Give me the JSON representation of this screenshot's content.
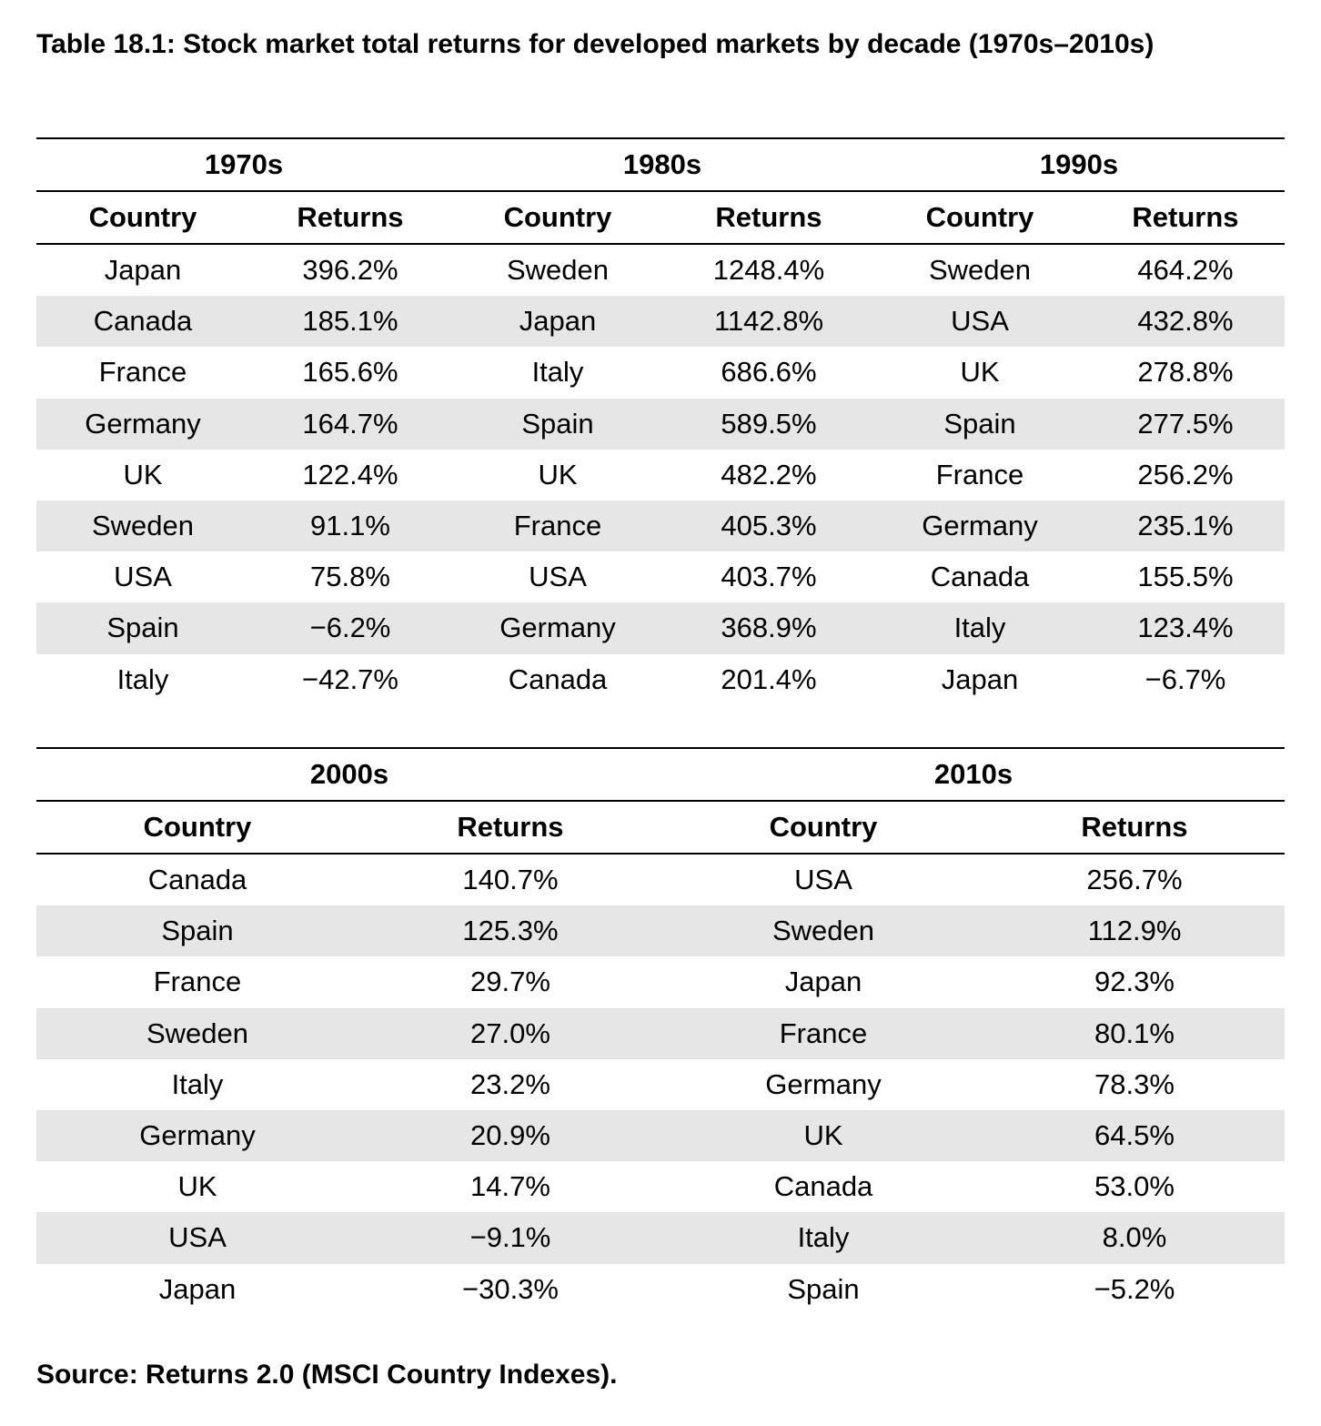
{
  "title": "Table 18.1: Stock market total returns for developed markets by decade (1970s–2010s)",
  "column_headers": {
    "country": "Country",
    "returns": "Returns"
  },
  "top_table": {
    "decades": [
      "1970s",
      "1980s",
      "1990s"
    ],
    "rows": [
      [
        "Japan",
        "396.2%",
        "Sweden",
        "1248.4%",
        "Sweden",
        "464.2%"
      ],
      [
        "Canada",
        "185.1%",
        "Japan",
        "1142.8%",
        "USA",
        "432.8%"
      ],
      [
        "France",
        "165.6%",
        "Italy",
        "686.6%",
        "UK",
        "278.8%"
      ],
      [
        "Germany",
        "164.7%",
        "Spain",
        "589.5%",
        "Spain",
        "277.5%"
      ],
      [
        "UK",
        "122.4%",
        "UK",
        "482.2%",
        "France",
        "256.2%"
      ],
      [
        "Sweden",
        "91.1%",
        "France",
        "405.3%",
        "Germany",
        "235.1%"
      ],
      [
        "USA",
        "75.8%",
        "USA",
        "403.7%",
        "Canada",
        "155.5%"
      ],
      [
        "Spain",
        "−6.2%",
        "Germany",
        "368.9%",
        "Italy",
        "123.4%"
      ],
      [
        "Italy",
        "−42.7%",
        "Canada",
        "201.4%",
        "Japan",
        "−6.7%"
      ]
    ]
  },
  "bottom_table": {
    "decades": [
      "2000s",
      "2010s"
    ],
    "rows": [
      [
        "Canada",
        "140.7%",
        "USA",
        "256.7%"
      ],
      [
        "Spain",
        "125.3%",
        "Sweden",
        "112.9%"
      ],
      [
        "France",
        "29.7%",
        "Japan",
        "92.3%"
      ],
      [
        "Sweden",
        "27.0%",
        "France",
        "80.1%"
      ],
      [
        "Italy",
        "23.2%",
        "Germany",
        "78.3%"
      ],
      [
        "Germany",
        "20.9%",
        "UK",
        "64.5%"
      ],
      [
        "UK",
        "14.7%",
        "Canada",
        "53.0%"
      ],
      [
        "USA",
        "−9.1%",
        "Italy",
        "8.0%"
      ],
      [
        "Japan",
        "−30.3%",
        "Spain",
        "−5.2%"
      ]
    ]
  },
  "source": "Source: Returns 2.0 (MSCI Country Indexes).",
  "colors": {
    "shaded_row": "#e5e6e5",
    "rule": "#000000"
  }
}
